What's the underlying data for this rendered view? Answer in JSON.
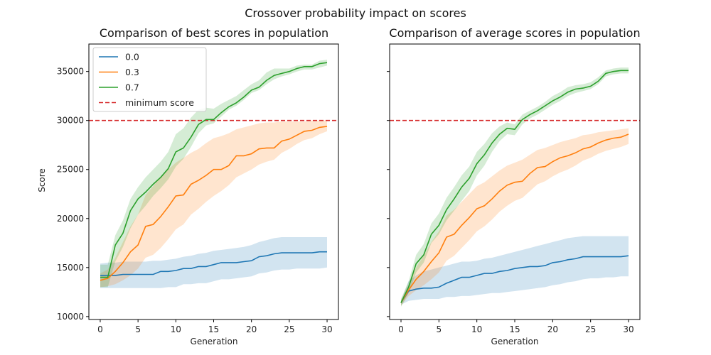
{
  "figure_title": "Crossover probability impact on scores",
  "chart_data": [
    {
      "type": "line",
      "title": "Comparison of best scores in population",
      "xlabel": "Generation",
      "ylabel": "Score",
      "xlim": [
        -1.5,
        31.5
      ],
      "ylim": [
        9700,
        37800
      ],
      "xticks": [
        0,
        5,
        10,
        15,
        20,
        25,
        30
      ],
      "yticks": [
        10000,
        15000,
        20000,
        25000,
        30000,
        35000
      ],
      "threshold": {
        "name": "minimum score",
        "value": 30000,
        "color": "#d62728"
      },
      "legend": {
        "placement": "top-left",
        "entries": [
          "0.0",
          "0.3",
          "0.7",
          "minimum score"
        ]
      },
      "x": [
        0,
        1,
        2,
        3,
        4,
        5,
        6,
        7,
        8,
        9,
        10,
        11,
        12,
        13,
        14,
        15,
        16,
        17,
        18,
        19,
        20,
        21,
        22,
        23,
        24,
        25,
        26,
        27,
        28,
        29,
        30
      ],
      "series": [
        {
          "name": "0.0",
          "color": "#1f77b4",
          "values": [
            14200,
            14200,
            14200,
            14300,
            14300,
            14300,
            14300,
            14300,
            14600,
            14600,
            14700,
            14900,
            14900,
            15100,
            15100,
            15300,
            15500,
            15500,
            15500,
            15600,
            15700,
            16100,
            16200,
            16400,
            16500,
            16500,
            16500,
            16500,
            16500,
            16600,
            16600
          ],
          "lower": [
            12900,
            12900,
            12900,
            12900,
            12900,
            12900,
            12900,
            12900,
            12900,
            13000,
            13000,
            13300,
            13300,
            13400,
            13400,
            13600,
            13800,
            13800,
            13900,
            14000,
            14100,
            14400,
            14500,
            14700,
            14800,
            14800,
            14900,
            14900,
            14900,
            14900,
            15000
          ],
          "upper": [
            15400,
            15500,
            15500,
            15600,
            15600,
            15600,
            15600,
            15700,
            15700,
            15800,
            15900,
            16100,
            16200,
            16400,
            16500,
            16700,
            16800,
            16900,
            17000,
            17100,
            17300,
            17600,
            17800,
            18000,
            18100,
            18100,
            18100,
            18100,
            18100,
            18100,
            18100
          ]
        },
        {
          "name": "0.3",
          "color": "#ff7f0e",
          "values": [
            13700,
            13900,
            14600,
            15500,
            16600,
            17300,
            19200,
            19400,
            20200,
            21200,
            22300,
            22400,
            23500,
            23900,
            24400,
            25000,
            25000,
            25400,
            26400,
            26400,
            26600,
            27100,
            27200,
            27200,
            27900,
            28100,
            28500,
            28900,
            29000,
            29300,
            29400
          ],
          "lower": [
            13000,
            13100,
            13300,
            13700,
            14200,
            14900,
            16000,
            16300,
            17000,
            17900,
            18900,
            19400,
            20400,
            21000,
            21700,
            22300,
            22800,
            23400,
            24200,
            24600,
            25000,
            25500,
            25800,
            26000,
            26700,
            27100,
            27600,
            28000,
            28200,
            28600,
            28900
          ],
          "upper": [
            14400,
            14800,
            16000,
            17600,
            19200,
            20400,
            22400,
            23300,
            24300,
            25000,
            25700,
            26200,
            26700,
            27100,
            27700,
            28200,
            28400,
            28700,
            29100,
            29300,
            29500,
            29700,
            29800,
            29800,
            29900,
            29900,
            29900,
            29900,
            30000,
            30000,
            30000
          ]
        },
        {
          "name": "0.7",
          "color": "#2ca02c",
          "values": [
            14000,
            14000,
            17300,
            18500,
            20800,
            22000,
            22700,
            23500,
            24200,
            25100,
            26800,
            27200,
            28300,
            29600,
            30100,
            30100,
            30800,
            31400,
            31800,
            32400,
            33100,
            33400,
            34100,
            34600,
            34800,
            35000,
            35300,
            35500,
            35500,
            35800,
            35900
          ],
          "lower": [
            13000,
            13000,
            15600,
            17100,
            19000,
            20400,
            21300,
            22300,
            23100,
            24000,
            25300,
            26100,
            27300,
            28700,
            29500,
            29700,
            30400,
            31100,
            31500,
            32100,
            32800,
            33100,
            33700,
            34200,
            34500,
            34700,
            35000,
            35200,
            35200,
            35400,
            35600
          ],
          "upper": [
            15300,
            15300,
            18300,
            19800,
            22000,
            23200,
            24200,
            25000,
            25800,
            26800,
            28600,
            29200,
            30300,
            31100,
            31300,
            31200,
            31700,
            32100,
            32500,
            33100,
            33700,
            34100,
            34900,
            35300,
            35300,
            35300,
            35600,
            35700,
            35700,
            36100,
            36200
          ]
        }
      ]
    },
    {
      "type": "line",
      "title": "Comparison of average scores in population",
      "xlabel": "Generation",
      "ylabel": "",
      "xlim": [
        -1.5,
        31.5
      ],
      "ylim": [
        9700,
        37800
      ],
      "xticks": [
        0,
        5,
        10,
        15,
        20,
        25,
        30
      ],
      "yticks": [
        10000,
        15000,
        20000,
        25000,
        30000,
        35000
      ],
      "threshold": {
        "name": "minimum score",
        "value": 30000,
        "color": "#d62728"
      },
      "x": [
        0,
        1,
        2,
        3,
        4,
        5,
        6,
        7,
        8,
        9,
        10,
        11,
        12,
        13,
        14,
        15,
        16,
        17,
        18,
        19,
        20,
        21,
        22,
        23,
        24,
        25,
        26,
        27,
        28,
        29,
        30
      ],
      "series": [
        {
          "name": "0.0",
          "color": "#1f77b4",
          "values": [
            11400,
            12600,
            12800,
            12900,
            12900,
            13000,
            13400,
            13700,
            14000,
            14000,
            14200,
            14400,
            14400,
            14600,
            14700,
            14900,
            15000,
            15100,
            15100,
            15200,
            15500,
            15600,
            15800,
            15900,
            16100,
            16100,
            16100,
            16100,
            16100,
            16100,
            16200
          ],
          "lower": [
            11200,
            11600,
            11700,
            11800,
            11800,
            11800,
            12000,
            12000,
            12100,
            12100,
            12200,
            12300,
            12400,
            12400,
            12500,
            12600,
            12700,
            12800,
            12900,
            13000,
            13200,
            13300,
            13500,
            13600,
            13800,
            13900,
            13900,
            14000,
            14000,
            14100,
            14100
          ],
          "upper": [
            11600,
            13600,
            14200,
            14600,
            14800,
            15000,
            15200,
            15400,
            15600,
            15600,
            15700,
            15900,
            16000,
            16200,
            16400,
            16600,
            16800,
            17000,
            17200,
            17400,
            17600,
            17800,
            18000,
            18100,
            18200,
            18200,
            18200,
            18200,
            18200,
            18200,
            18200
          ]
        },
        {
          "name": "0.3",
          "color": "#ff7f0e",
          "values": [
            11400,
            12700,
            13800,
            14600,
            15600,
            16500,
            18100,
            18400,
            19300,
            20100,
            21000,
            21300,
            22000,
            22800,
            23400,
            23700,
            23800,
            24600,
            25200,
            25300,
            25800,
            26200,
            26400,
            26700,
            27100,
            27300,
            27700,
            28000,
            28200,
            28300,
            28600
          ],
          "lower": [
            11100,
            12100,
            12700,
            13200,
            13800,
            14500,
            15700,
            16200,
            17000,
            17800,
            18700,
            19200,
            19900,
            20700,
            21300,
            21800,
            22100,
            22800,
            23500,
            23800,
            24300,
            24700,
            25000,
            25400,
            25900,
            26200,
            26600,
            26900,
            27100,
            27300,
            27600
          ],
          "upper": [
            11700,
            13300,
            15000,
            16200,
            17600,
            18700,
            20300,
            20900,
            21700,
            22500,
            23300,
            23700,
            24300,
            24900,
            25400,
            25700,
            26000,
            26500,
            27000,
            27200,
            27500,
            27800,
            28000,
            28200,
            28500,
            28600,
            28800,
            28900,
            29000,
            29100,
            29200
          ]
        },
        {
          "name": "0.7",
          "color": "#2ca02c",
          "values": [
            11400,
            13000,
            15400,
            16300,
            18400,
            19300,
            20900,
            22000,
            23200,
            24100,
            25600,
            26500,
            27700,
            28600,
            29200,
            29100,
            30100,
            30600,
            31000,
            31500,
            32000,
            32400,
            32900,
            33200,
            33300,
            33500,
            34000,
            34800,
            35000,
            35100,
            35100
          ],
          "lower": [
            11000,
            12400,
            14500,
            15500,
            17500,
            18400,
            19800,
            20800,
            21800,
            22800,
            24400,
            25400,
            26800,
            27900,
            28600,
            28500,
            29600,
            30200,
            30600,
            31100,
            31600,
            32000,
            32500,
            32800,
            33000,
            33200,
            33700,
            34500,
            34700,
            34800,
            34800
          ],
          "upper": [
            11800,
            13600,
            16300,
            17400,
            19500,
            20500,
            22100,
            23200,
            24400,
            25300,
            26800,
            27600,
            28700,
            29400,
            29800,
            29600,
            30600,
            31000,
            31400,
            31900,
            32500,
            32900,
            33400,
            33600,
            33700,
            33900,
            34400,
            35100,
            35300,
            35400,
            35400
          ]
        }
      ]
    }
  ]
}
